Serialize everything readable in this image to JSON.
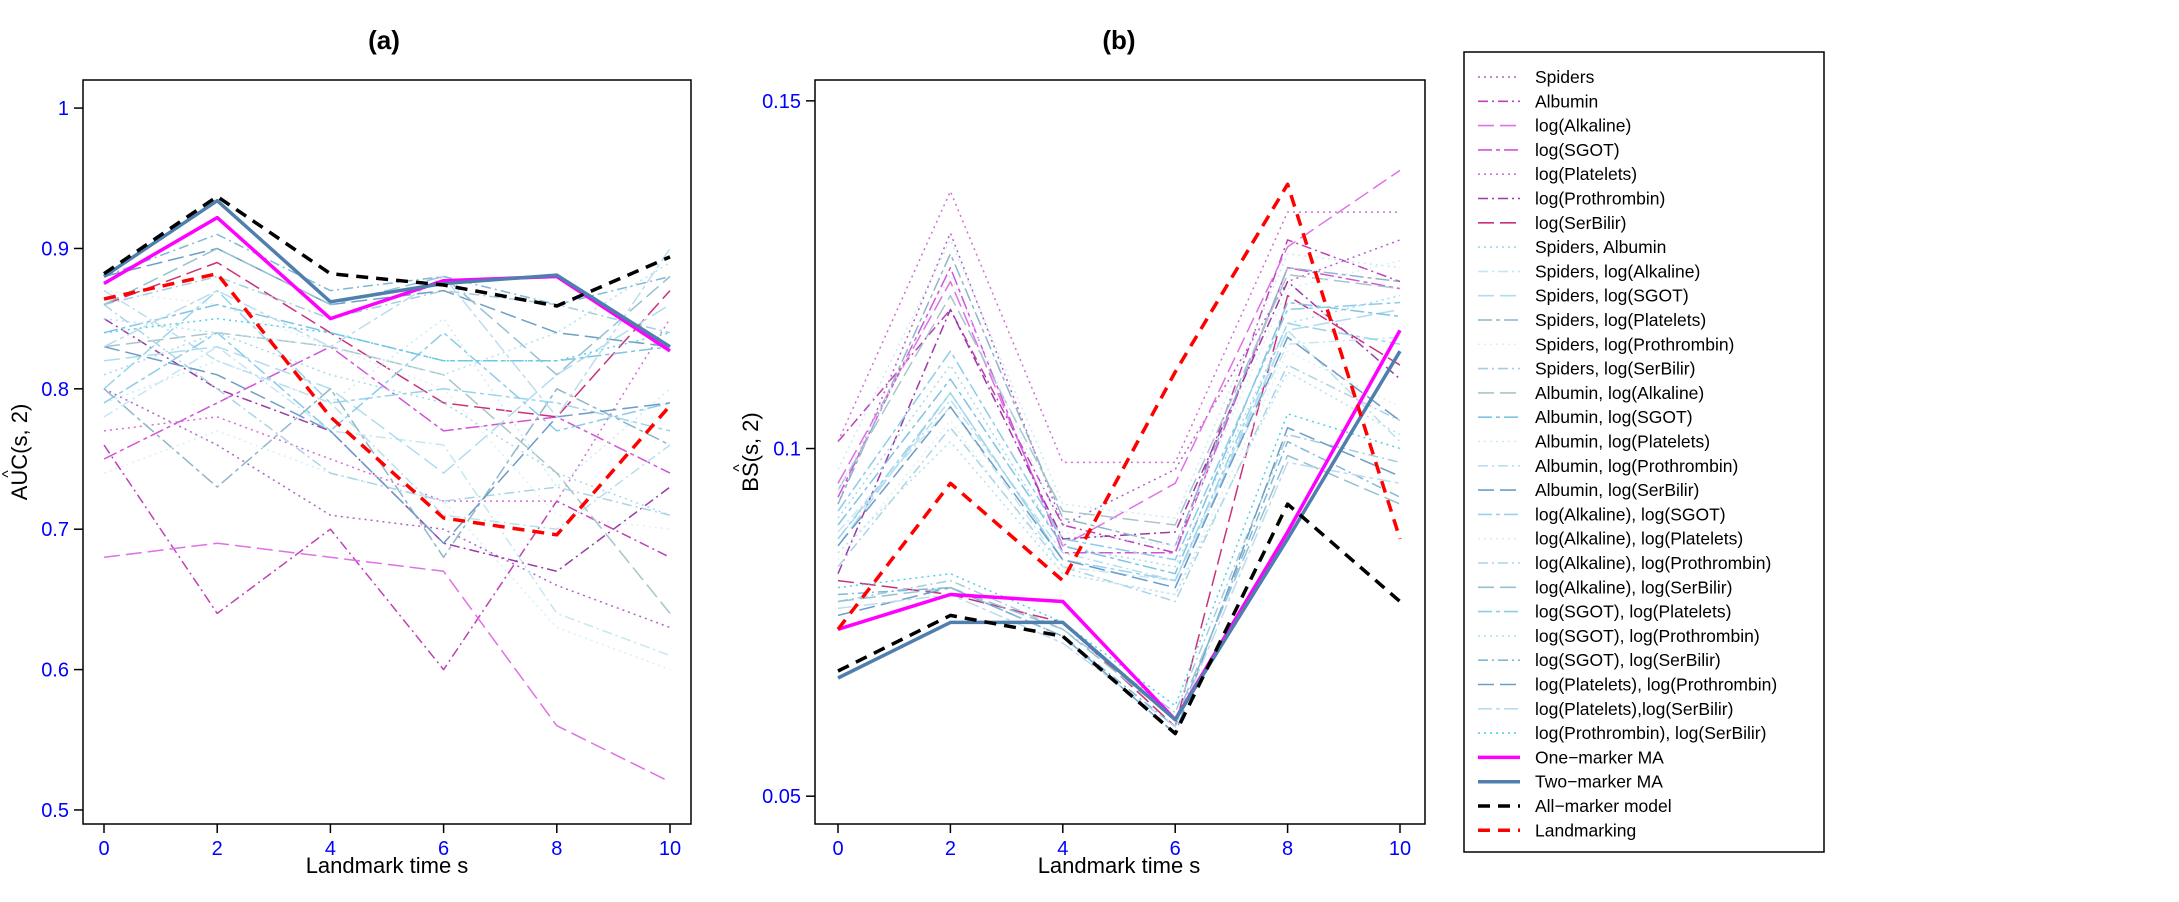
{
  "chart_data": [
    {
      "type": "line",
      "title": "(a)",
      "xlabel": "Landmark time s",
      "ylabel": "AUC(s, 2)",
      "ylabel_hat": "^",
      "xlim": [
        0,
        10
      ],
      "ylim": [
        0.49,
        1.02
      ],
      "x_ticks": [
        0,
        2,
        4,
        6,
        8,
        10
      ],
      "x_tick_labels": [
        "0",
        "2",
        "4",
        "6",
        "8",
        "10"
      ],
      "y_ticks": [
        0.5,
        0.6,
        0.7,
        0.8,
        0.9,
        1.0
      ],
      "y_tick_labels": [
        "0.5",
        "0.6",
        "0.7",
        "0.8",
        "0.9",
        "1"
      ],
      "x": [
        0,
        2,
        4,
        6,
        8,
        10
      ],
      "series": [
        {
          "name": "Spiders",
          "values": [
            0.8,
            0.76,
            0.71,
            0.7,
            0.66,
            0.63
          ]
        },
        {
          "name": "Albumin",
          "values": [
            0.76,
            0.64,
            0.7,
            0.6,
            0.72,
            0.68
          ]
        },
        {
          "name": "log(Alkaline)",
          "values": [
            0.68,
            0.69,
            0.68,
            0.67,
            0.56,
            0.52
          ]
        },
        {
          "name": "log(SGOT)",
          "values": [
            0.75,
            0.79,
            0.83,
            0.77,
            0.78,
            0.74
          ]
        },
        {
          "name": "log(Platelets)",
          "values": [
            0.77,
            0.78,
            0.75,
            0.72,
            0.72,
            0.85
          ]
        },
        {
          "name": "log(Prothrombin)",
          "values": [
            0.85,
            0.8,
            0.77,
            0.69,
            0.67,
            0.73
          ]
        },
        {
          "name": "log(SerBilir)",
          "values": [
            0.86,
            0.89,
            0.84,
            0.79,
            0.78,
            0.87
          ]
        },
        {
          "name": "Spiders, Albumin",
          "values": [
            0.81,
            0.84,
            0.81,
            0.79,
            0.74,
            0.71
          ]
        },
        {
          "name": "Spiders, log(Alkaline)",
          "values": [
            0.78,
            0.83,
            0.77,
            0.76,
            0.64,
            0.61
          ]
        },
        {
          "name": "Spiders, log(SGOT)",
          "values": [
            0.82,
            0.83,
            0.8,
            0.74,
            0.81,
            0.86
          ]
        },
        {
          "name": "Spiders, log(Platelets)",
          "values": [
            0.8,
            0.73,
            0.8,
            0.68,
            0.8,
            0.76
          ]
        },
        {
          "name": "Spiders, log(Prothrombin)",
          "values": [
            0.87,
            0.86,
            0.83,
            0.8,
            0.71,
            0.7
          ]
        },
        {
          "name": "Spiders, log(SerBilir)",
          "values": [
            0.86,
            0.88,
            0.85,
            0.87,
            0.86,
            0.84
          ]
        },
        {
          "name": "Albumin, log(Alkaline)",
          "values": [
            0.83,
            0.84,
            0.83,
            0.81,
            0.74,
            0.64
          ]
        },
        {
          "name": "Albumin, log(SGOT)",
          "values": [
            0.84,
            0.86,
            0.84,
            0.82,
            0.82,
            0.83
          ]
        },
        {
          "name": "Albumin, log(Platelets)",
          "values": [
            0.79,
            0.82,
            0.79,
            0.85,
            0.73,
            0.8
          ]
        },
        {
          "name": "Albumin, log(Prothrombin)",
          "values": [
            0.87,
            0.82,
            0.79,
            0.71,
            0.7,
            0.76
          ]
        },
        {
          "name": "Albumin, log(SerBilir)",
          "values": [
            0.88,
            0.9,
            0.86,
            0.87,
            0.84,
            0.83
          ]
        },
        {
          "name": "log(Alkaline), log(SGOT)",
          "values": [
            0.8,
            0.87,
            0.79,
            0.8,
            0.79,
            0.77
          ]
        },
        {
          "name": "log(Alkaline), log(Platelets)",
          "values": [
            0.74,
            0.77,
            0.74,
            0.72,
            0.63,
            0.6
          ]
        },
        {
          "name": "log(Alkaline), log(Prothrombin)",
          "values": [
            0.86,
            0.8,
            0.74,
            0.72,
            0.73,
            0.71
          ]
        },
        {
          "name": "log(Alkaline), log(SerBilir)",
          "values": [
            0.86,
            0.9,
            0.86,
            0.88,
            0.81,
            0.88
          ]
        },
        {
          "name": "log(SGOT), log(Platelets)",
          "values": [
            0.79,
            0.84,
            0.77,
            0.84,
            0.77,
            0.79
          ]
        },
        {
          "name": "log(SGOT), log(Prothrombin)",
          "values": [
            0.85,
            0.84,
            0.83,
            0.81,
            0.84,
            0.89
          ]
        },
        {
          "name": "log(SGOT), log(SerBilir)",
          "values": [
            0.88,
            0.91,
            0.87,
            0.88,
            0.86,
            0.88
          ]
        },
        {
          "name": "log(Platelets), log(Prothrombin)",
          "values": [
            0.83,
            0.81,
            0.77,
            0.69,
            0.78,
            0.79
          ]
        },
        {
          "name": "log(Platelets),log(SerBilir)",
          "values": [
            0.83,
            0.87,
            0.83,
            0.88,
            0.78,
            0.9
          ]
        },
        {
          "name": "log(Prothrombin), log(SerBilir)",
          "values": [
            0.84,
            0.85,
            0.84,
            0.82,
            0.82,
            0.84
          ]
        },
        {
          "name": "One−marker MA",
          "values": [
            0.875,
            0.922,
            0.85,
            0.877,
            0.88,
            0.827
          ]
        },
        {
          "name": "Two−marker MA",
          "values": [
            0.88,
            0.934,
            0.862,
            0.875,
            0.881,
            0.83
          ]
        },
        {
          "name": "All−marker model",
          "values": [
            0.882,
            0.937,
            0.882,
            0.874,
            0.859,
            0.894
          ]
        },
        {
          "name": "Landmarking",
          "values": [
            0.864,
            0.882,
            0.78,
            0.708,
            0.696,
            0.788
          ]
        }
      ]
    },
    {
      "type": "line",
      "title": "(b)",
      "xlabel": "Landmark time s",
      "ylabel": "BS(s, 2)",
      "ylabel_hat": "^",
      "xlim": [
        0,
        10
      ],
      "ylim": [
        0.046,
        0.153
      ],
      "x_ticks": [
        0,
        2,
        4,
        6,
        8,
        10
      ],
      "x_tick_labels": [
        "0",
        "2",
        "4",
        "6",
        "8",
        "10"
      ],
      "y_ticks": [
        0.05,
        0.1,
        0.15
      ],
      "y_tick_labels": [
        "0.05",
        "0.1",
        "0.15"
      ],
      "x": [
        0,
        2,
        4,
        6,
        8,
        10
      ],
      "series": [
        {
          "name": "Spiders",
          "values": [
            0.092,
            0.131,
            0.089,
            0.097,
            0.124,
            0.13
          ]
        },
        {
          "name": "Albumin",
          "values": [
            0.101,
            0.12,
            0.089,
            0.085,
            0.13,
            0.124
          ]
        },
        {
          "name": "log(Alkaline)",
          "values": [
            0.095,
            0.124,
            0.086,
            0.095,
            0.129,
            0.14
          ]
        },
        {
          "name": "log(SGOT)",
          "values": [
            0.093,
            0.126,
            0.085,
            0.085,
            0.126,
            0.123
          ]
        },
        {
          "name": "log(Platelets)",
          "values": [
            0.101,
            0.137,
            0.098,
            0.098,
            0.134,
            0.134
          ]
        },
        {
          "name": "log(Prothrombin)",
          "values": [
            0.082,
            0.12,
            0.087,
            0.088,
            0.124,
            0.11
          ]
        },
        {
          "name": "log(SerBilir)",
          "values": [
            0.081,
            0.079,
            0.075,
            0.06,
            0.122,
            0.112
          ]
        },
        {
          "name": "Spiders, Albumin",
          "values": [
            0.09,
            0.112,
            0.086,
            0.083,
            0.118,
            0.122
          ]
        },
        {
          "name": "Spiders, log(Alkaline)",
          "values": [
            0.088,
            0.106,
            0.083,
            0.081,
            0.115,
            0.116
          ]
        },
        {
          "name": "Spiders, log(SGOT)",
          "values": [
            0.086,
            0.108,
            0.084,
            0.08,
            0.117,
            0.12
          ]
        },
        {
          "name": "Spiders, log(Platelets)",
          "values": [
            0.092,
            0.128,
            0.09,
            0.086,
            0.126,
            0.124
          ]
        },
        {
          "name": "Spiders, log(Prothrombin)",
          "values": [
            0.084,
            0.104,
            0.082,
            0.079,
            0.114,
            0.106
          ]
        },
        {
          "name": "Spiders, log(SerBilir)",
          "values": [
            0.078,
            0.081,
            0.074,
            0.062,
            0.102,
            0.098
          ]
        },
        {
          "name": "Albumin, log(Alkaline)",
          "values": [
            0.094,
            0.122,
            0.091,
            0.089,
            0.125,
            0.123
          ]
        },
        {
          "name": "Albumin, log(SGOT)",
          "values": [
            0.089,
            0.11,
            0.086,
            0.082,
            0.121,
            0.119
          ]
        },
        {
          "name": "Albumin, log(Platelets)",
          "values": [
            0.097,
            0.13,
            0.092,
            0.09,
            0.128,
            0.126
          ]
        },
        {
          "name": "Albumin, log(Prothrombin)",
          "values": [
            0.087,
            0.107,
            0.085,
            0.081,
            0.117,
            0.101
          ]
        },
        {
          "name": "Albumin, log(SerBilir)",
          "values": [
            0.076,
            0.08,
            0.073,
            0.059,
            0.103,
            0.096
          ]
        },
        {
          "name": "log(Alkaline), log(SGOT)",
          "values": [
            0.087,
            0.108,
            0.084,
            0.081,
            0.118,
            0.115
          ]
        },
        {
          "name": "log(Alkaline), log(Platelets)",
          "values": [
            0.094,
            0.125,
            0.088,
            0.086,
            0.123,
            0.127
          ]
        },
        {
          "name": "log(Alkaline), log(Prothrombin)",
          "values": [
            0.083,
            0.103,
            0.083,
            0.078,
            0.112,
            0.104
          ]
        },
        {
          "name": "log(Alkaline), log(SerBilir)",
          "values": [
            0.078,
            0.08,
            0.074,
            0.061,
            0.099,
            0.092
          ]
        },
        {
          "name": "log(SGOT), log(Platelets)",
          "values": [
            0.091,
            0.114,
            0.087,
            0.084,
            0.12,
            0.121
          ]
        },
        {
          "name": "log(SGOT), log(Prothrombin)",
          "values": [
            0.085,
            0.101,
            0.082,
            0.079,
            0.111,
            0.102
          ]
        },
        {
          "name": "log(SGOT), log(SerBilir)",
          "values": [
            0.079,
            0.08,
            0.073,
            0.06,
            0.101,
            0.093
          ]
        },
        {
          "name": "log(Platelets), log(Prothrombin)",
          "values": [
            0.086,
            0.106,
            0.084,
            0.08,
            0.116,
            0.104
          ]
        },
        {
          "name": "log(Platelets),log(SerBilir)",
          "values": [
            0.077,
            0.079,
            0.072,
            0.06,
            0.098,
            0.095
          ]
        },
        {
          "name": "log(Prothrombin), log(SerBilir)",
          "values": [
            0.08,
            0.082,
            0.075,
            0.063,
            0.105,
            0.1
          ]
        },
        {
          "name": "One−marker MA",
          "values": [
            0.074,
            0.079,
            0.078,
            0.061,
            0.088,
            0.117
          ]
        },
        {
          "name": "Two−marker MA",
          "values": [
            0.067,
            0.075,
            0.075,
            0.061,
            0.087,
            0.114
          ]
        },
        {
          "name": "All−marker model",
          "values": [
            0.068,
            0.076,
            0.073,
            0.059,
            0.092,
            0.078
          ]
        },
        {
          "name": "Landmarking",
          "values": [
            0.074,
            0.095,
            0.081,
            0.111,
            0.138,
            0.087
          ]
        }
      ]
    }
  ],
  "series_styles": [
    {
      "name": "Spiders",
      "color": "#b45fc8",
      "dash": "dot",
      "width": 1.5
    },
    {
      "name": "Albumin",
      "color": "#c040b8",
      "dash": "dashdot",
      "width": 1.5
    },
    {
      "name": "log(Alkaline)",
      "color": "#e070e6",
      "dash": "longdash",
      "width": 1.5
    },
    {
      "name": "log(SGOT)",
      "color": "#d055d8",
      "dash": "twodash",
      "width": 1.5
    },
    {
      "name": "log(Platelets)",
      "color": "#d46ed4",
      "dash": "dot",
      "width": 1.5
    },
    {
      "name": "log(Prothrombin)",
      "color": "#9b3aa8",
      "dash": "dashdot",
      "width": 1.5
    },
    {
      "name": "log(SerBilir)",
      "color": "#c8327c",
      "dash": "longdash",
      "width": 1.5
    },
    {
      "name": "Spiders, Albumin",
      "color": "#a8d8ea",
      "dash": "dot",
      "width": 1.5
    },
    {
      "name": "Spiders, log(Alkaline)",
      "color": "#c6e6f2",
      "dash": "dashdot",
      "width": 1.5
    },
    {
      "name": "Spiders, log(SGOT)",
      "color": "#b0dcef",
      "dash": "longdash",
      "width": 1.5
    },
    {
      "name": "Spiders, log(Platelets)",
      "color": "#8fb6c8",
      "dash": "twodash",
      "width": 1.5
    },
    {
      "name": "Spiders, log(Prothrombin)",
      "color": "#e3eef4",
      "dash": "dot",
      "width": 1.5
    },
    {
      "name": "Spiders, log(SerBilir)",
      "color": "#a4cde0",
      "dash": "dashdot",
      "width": 1.5
    },
    {
      "name": "Albumin, log(Alkaline)",
      "color": "#a8c6c8",
      "dash": "longdash",
      "width": 1.5
    },
    {
      "name": "Albumin, log(SGOT)",
      "color": "#7fc4e2",
      "dash": "twodash",
      "width": 1.5
    },
    {
      "name": "Albumin, log(Platelets)",
      "color": "#c9ebf6",
      "dash": "dot",
      "width": 1.5
    },
    {
      "name": "Albumin, log(Prothrombin)",
      "color": "#b9dfee",
      "dash": "dashdot",
      "width": 1.5
    },
    {
      "name": "Albumin, log(SerBilir)",
      "color": "#6d9ec4",
      "dash": "longdash",
      "width": 1.5
    },
    {
      "name": "log(Alkaline), log(SGOT)",
      "color": "#9ad4ec",
      "dash": "twodash",
      "width": 1.5
    },
    {
      "name": "log(Alkaline), log(Platelets)",
      "color": "#d6f0f8",
      "dash": "dot",
      "width": 1.5
    },
    {
      "name": "log(Alkaline), log(Prothrombin)",
      "color": "#aad4e6",
      "dash": "dashdot",
      "width": 1.5
    },
    {
      "name": "log(Alkaline), log(SerBilir)",
      "color": "#95c2d2",
      "dash": "longdash",
      "width": 1.5
    },
    {
      "name": "log(SGOT), log(Platelets)",
      "color": "#8ccce8",
      "dash": "twodash",
      "width": 1.5
    },
    {
      "name": "log(SGOT), log(Prothrombin)",
      "color": "#b4e2ee",
      "dash": "dot",
      "width": 1.5
    },
    {
      "name": "log(SGOT), log(SerBilir)",
      "color": "#80b8d8",
      "dash": "dashdot",
      "width": 1.5
    },
    {
      "name": "log(Platelets), log(Prothrombin)",
      "color": "#6e9cc6",
      "dash": "longdash",
      "width": 1.5
    },
    {
      "name": "log(Platelets),log(SerBilir)",
      "color": "#bcdcee",
      "dash": "twodash",
      "width": 1.5
    },
    {
      "name": "log(Prothrombin), log(SerBilir)",
      "color": "#52cfe6",
      "dash": "dot",
      "width": 1.5
    },
    {
      "name": "One−marker MA",
      "color": "#ff00ff",
      "dash": "solid",
      "width": 3.5
    },
    {
      "name": "Two−marker MA",
      "color": "#4f7fad",
      "dash": "solid",
      "width": 3.5
    },
    {
      "name": "All−marker model",
      "color": "#000000",
      "dash": "dash",
      "width": 3.5
    },
    {
      "name": "Landmarking",
      "color": "#ff0000",
      "dash": "dash",
      "width": 3.5
    }
  ]
}
